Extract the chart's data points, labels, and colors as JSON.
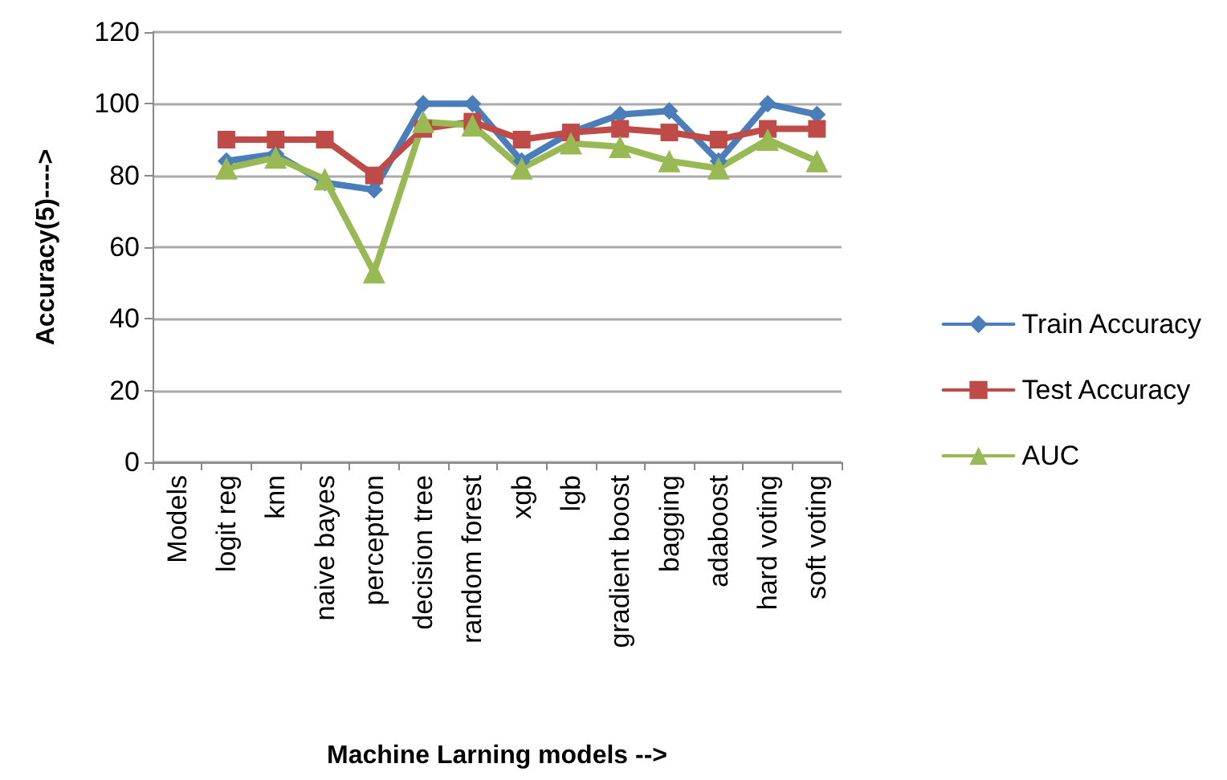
{
  "chart_data": {
    "type": "line",
    "xlabel": "Machine Larning models -->",
    "ylabel": "Accuracy(5)---->",
    "categories": [
      "Models",
      "logit reg",
      "knn",
      "naive bayes",
      "perceptron",
      "decision tree",
      "random forest",
      "xgb",
      "lgb",
      "gradient boost",
      "bagging",
      "adaboost",
      "hard voting",
      "soft voting"
    ],
    "series": [
      {
        "name": "Train Accuracy",
        "color": "#4a7ebb",
        "marker": "diamond",
        "values": [
          null,
          84,
          86,
          78,
          76,
          100,
          100,
          84,
          92,
          97,
          98,
          84,
          100,
          97
        ]
      },
      {
        "name": "Test Accuracy",
        "color": "#be4b48",
        "marker": "square",
        "values": [
          null,
          90,
          90,
          90,
          80,
          93,
          95,
          90,
          92,
          93,
          92,
          90,
          93,
          93
        ]
      },
      {
        "name": "AUC",
        "color": "#98b954",
        "marker": "triangle",
        "values": [
          null,
          82,
          85,
          79,
          53,
          95,
          94,
          82,
          89,
          88,
          84,
          82,
          90,
          84
        ]
      }
    ],
    "ylim": [
      0,
      120
    ],
    "yticks": [
      0,
      20,
      40,
      60,
      80,
      100,
      120
    ],
    "grid": "y",
    "legend": "right",
    "line_style": "solid"
  }
}
